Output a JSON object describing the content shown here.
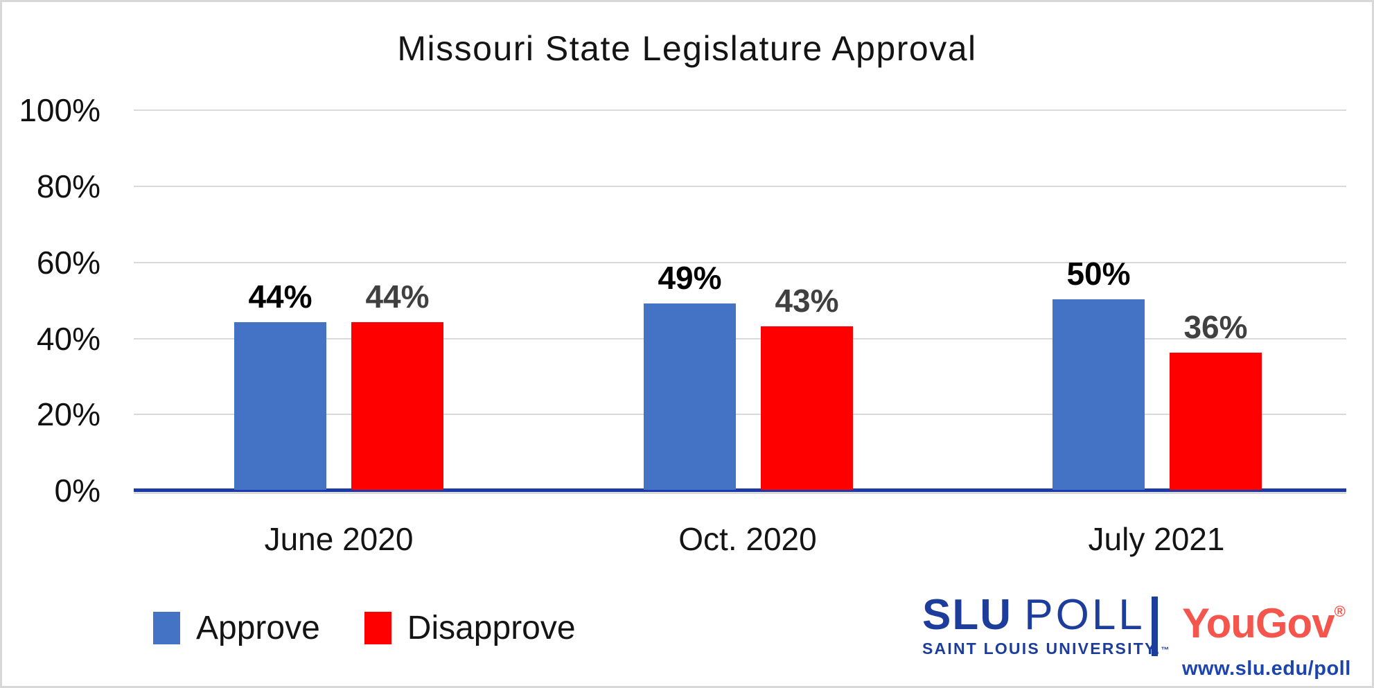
{
  "title": "Missouri State Legislature Approval",
  "chart_data": {
    "type": "bar",
    "title": "Missouri State Legislature Approval",
    "categories": [
      "June 2020",
      "Oct. 2020",
      "July 2021"
    ],
    "series": [
      {
        "name": "Approve",
        "color": "#4472C4",
        "label_color": "#000000",
        "values": [
          44,
          49,
          50
        ]
      },
      {
        "name": "Disapprove",
        "color": "#FF0000",
        "label_color": "#404040",
        "values": [
          44,
          43,
          36
        ]
      }
    ],
    "y_ticks": [
      "100%",
      "80%",
      "60%",
      "40%",
      "20%",
      "0%"
    ],
    "ylim": [
      0,
      100
    ],
    "grid": true,
    "gridline_color": "#D9D9D9",
    "axis_color": "#1C39A8",
    "legend_position": "bottom-left"
  },
  "branding": {
    "slu_name": "SLU",
    "slu_poll": "POLL",
    "slu_sub": "SAINT LOUIS UNIVERSITY.",
    "slu_tm": "™",
    "yougov": "YouGov",
    "yougov_reg": "®",
    "url": "www.slu.edu/poll"
  }
}
